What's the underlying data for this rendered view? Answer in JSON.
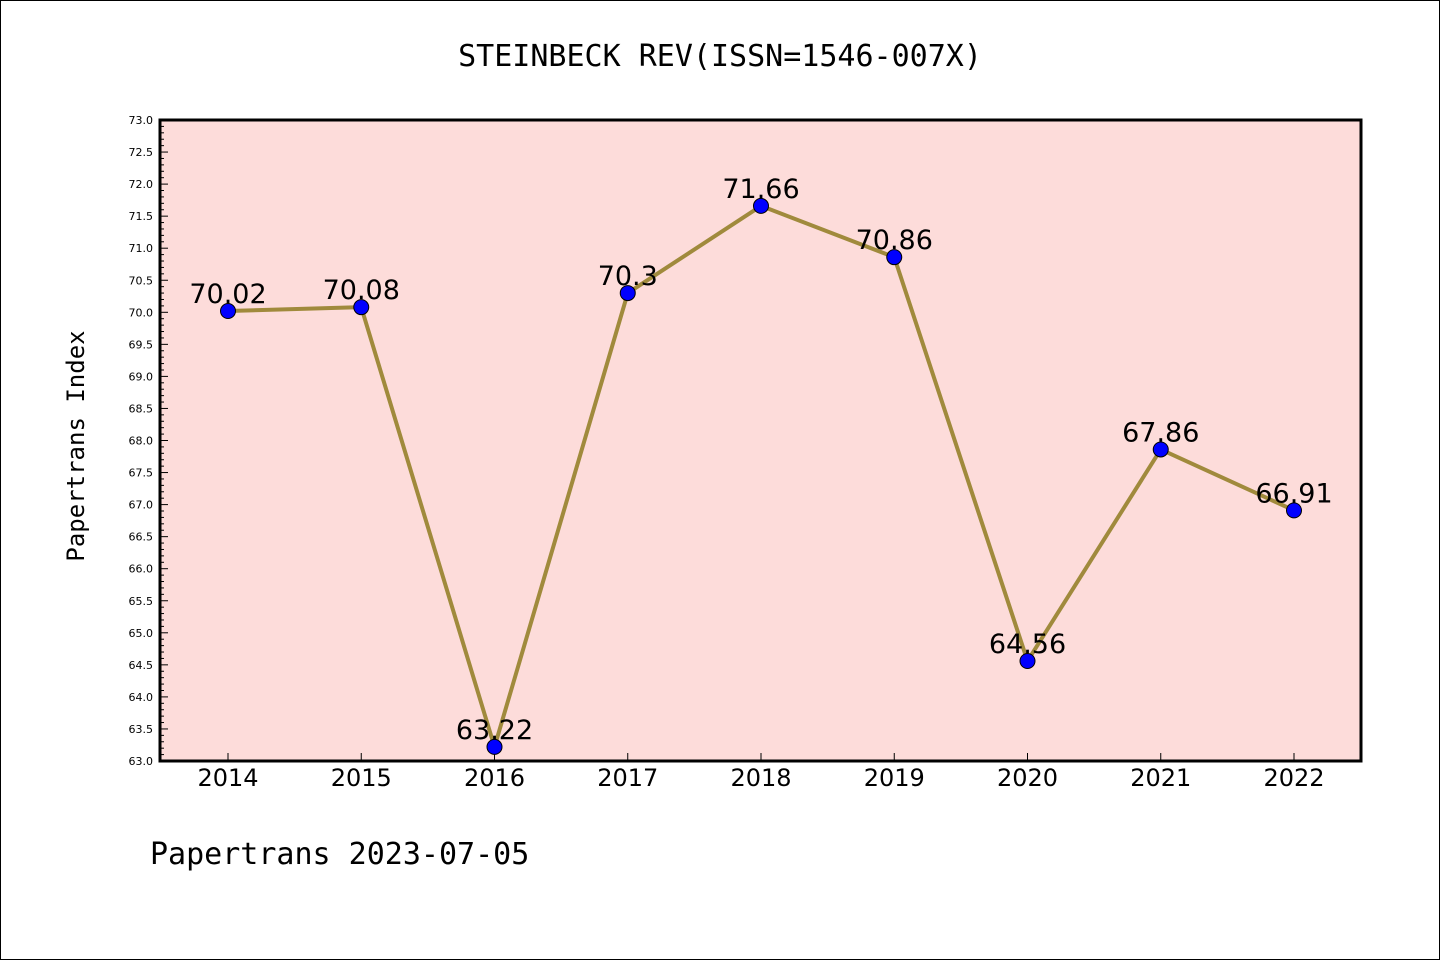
{
  "colors": {
    "plot_background": "#fddcda",
    "line": "#a08a3c",
    "marker": "#0000ff",
    "frame": "#000000"
  },
  "footer_text": "Papertrans 2023-07-05",
  "chart_data": {
    "type": "line",
    "title": "STEINBECK REV(ISSN=1546-007X)",
    "xlabel": "",
    "ylabel": "Papertrans Index",
    "categories": [
      "2014",
      "2015",
      "2016",
      "2017",
      "2018",
      "2019",
      "2020",
      "2021",
      "2022"
    ],
    "values": [
      70.02,
      70.08,
      63.22,
      70.3,
      71.66,
      70.86,
      64.56,
      67.86,
      66.91
    ],
    "data_labels": [
      "70.02",
      "70.08",
      "63.22",
      "70.3",
      "71.66",
      "70.86",
      "64.56",
      "67.86",
      "66.91"
    ],
    "ylim": [
      63.0,
      73.0
    ],
    "y_ticks": [
      "63.0",
      "63.5",
      "64.0",
      "64.5",
      "65.0",
      "65.5",
      "66.0",
      "66.5",
      "67.0",
      "67.5",
      "68.0",
      "68.5",
      "69.0",
      "69.5",
      "70.0",
      "70.5",
      "71.0",
      "71.5",
      "72.0",
      "72.5",
      "73.0"
    ],
    "grid": false,
    "legend": "none"
  }
}
